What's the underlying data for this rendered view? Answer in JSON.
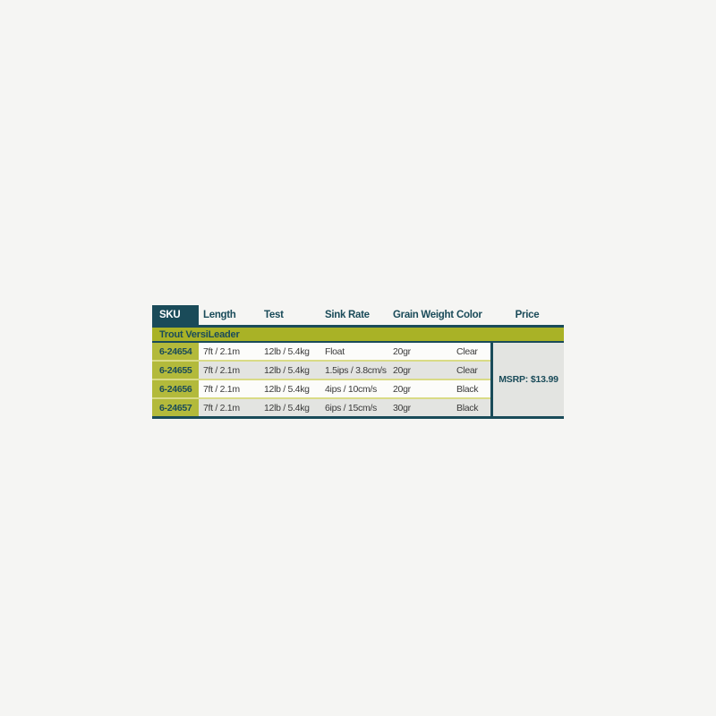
{
  "page": {
    "background_color": "#f5f5f3"
  },
  "colors": {
    "teal": "#1a4b59",
    "olive_band": "#a9b226",
    "olive_sku_cell": "#b3ba3b",
    "row_separator": "#d9db86",
    "row_alt_gray": "#e3e4e1",
    "row_white": "#fcfcfa",
    "header_text_on_teal": "#ffffff",
    "data_text": "#3b3b3b"
  },
  "chart_data": {
    "type": "table",
    "title": "Trout VersiLeader product specifications",
    "section_title": "Trout VersiLeader",
    "columns": [
      "SKU",
      "Length",
      "Test",
      "Sink Rate",
      "Grain Weight",
      "Color",
      "Price"
    ],
    "rows": [
      {
        "sku": "6-24654",
        "length": "7ft / 2.1m",
        "test": "12lb / 5.4kg",
        "sink_rate": "Float",
        "grain_weight": "20gr",
        "color": "Clear"
      },
      {
        "sku": "6-24655",
        "length": "7ft / 2.1m",
        "test": "12lb / 5.4kg",
        "sink_rate": "1.5ips / 3.8cm/s",
        "grain_weight": "20gr",
        "color": "Clear"
      },
      {
        "sku": "6-24656",
        "length": "7ft / 2.1m",
        "test": "12lb / 5.4kg",
        "sink_rate": "4ips / 10cm/s",
        "grain_weight": "20gr",
        "color": "Black"
      },
      {
        "sku": "6-24657",
        "length": "7ft / 2.1m",
        "test": "12lb / 5.4kg",
        "sink_rate": "6ips / 15cm/s",
        "grain_weight": "30gr",
        "color": "Black"
      }
    ],
    "merged_price_cell": "MSRP: $13.99",
    "layout": {
      "price_cell_rowspan": 4,
      "grid": true,
      "legend_position": "none"
    }
  }
}
